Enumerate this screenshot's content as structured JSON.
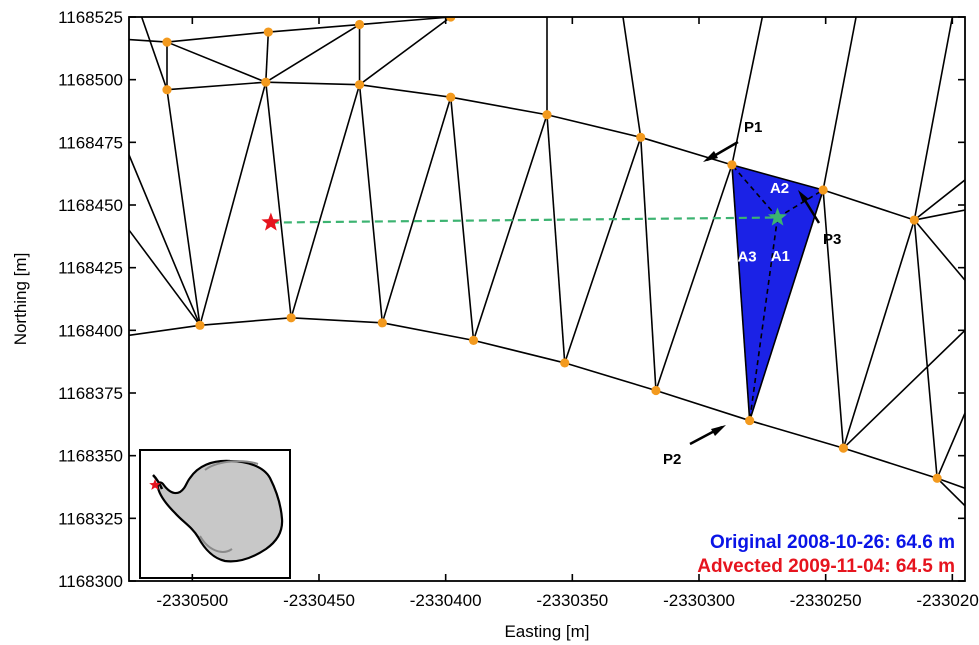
{
  "colors": {
    "node": "#f39a1e",
    "triangle_fill": "#1b22e6",
    "trajectory": "#3cb371",
    "original_text": "#0a14e6",
    "advected_text": "#e6141e",
    "start_marker": "#e6141e",
    "end_marker": "#3cb371",
    "antarctica_land": "#c8c8c8"
  },
  "chart_data": {
    "type": "scatter",
    "xlabel": "Easting [m]",
    "ylabel": "Northing [m]",
    "xlim": [
      -2330525,
      -2330195
    ],
    "ylim": [
      1168300,
      1168525
    ],
    "xticks": [
      -2330500,
      -2330450,
      -2330400,
      -2330350,
      -2330300,
      -2330250,
      -2330200
    ],
    "xtick_labels": [
      "-2330500",
      "-2330450",
      "-2330400",
      "-2330350",
      "-2330300",
      "-2330250",
      "-2330200"
    ],
    "yticks": [
      1168300,
      1168325,
      1168350,
      1168375,
      1168400,
      1168425,
      1168450,
      1168475,
      1168500,
      1168525
    ],
    "ytick_labels": [
      "1168300",
      "1168325",
      "1168350",
      "1168375",
      "1168400",
      "1168425",
      "1168450",
      "1168475",
      "1168500",
      "1168525"
    ],
    "mesh_nodes": [
      [
        -2330510,
        1168515
      ],
      [
        -2330470,
        1168519
      ],
      [
        -2330434,
        1168522
      ],
      [
        -2330398,
        1168525
      ],
      [
        -2330510,
        1168496
      ],
      [
        -2330471,
        1168499
      ],
      [
        -2330434,
        1168498
      ],
      [
        -2330398,
        1168493
      ],
      [
        -2330360,
        1168486
      ],
      [
        -2330323,
        1168477
      ],
      [
        -2330287,
        1168466
      ],
      [
        -2330251,
        1168456
      ],
      [
        -2330215,
        1168444
      ],
      [
        -2330497,
        1168402
      ],
      [
        -2330461,
        1168405
      ],
      [
        -2330425,
        1168403
      ],
      [
        -2330389,
        1168396
      ],
      [
        -2330353,
        1168387
      ],
      [
        -2330317,
        1168376
      ],
      [
        -2330280,
        1168364
      ],
      [
        -2330243,
        1168353
      ],
      [
        -2330206,
        1168341
      ]
    ],
    "mesh_triangles": [
      [
        0,
        1,
        5
      ],
      [
        1,
        2,
        5
      ],
      [
        2,
        6,
        5
      ],
      [
        2,
        3,
        6
      ],
      [
        0,
        4,
        5
      ],
      [
        4,
        5,
        13
      ],
      [
        5,
        13,
        14
      ],
      [
        5,
        6,
        14
      ],
      [
        6,
        14,
        15
      ],
      [
        6,
        7,
        15
      ],
      [
        7,
        15,
        16
      ],
      [
        7,
        8,
        16
      ],
      [
        8,
        16,
        17
      ],
      [
        8,
        9,
        17
      ],
      [
        9,
        17,
        18
      ],
      [
        9,
        10,
        18
      ],
      [
        10,
        18,
        19
      ],
      [
        10,
        11,
        19
      ],
      [
        11,
        19,
        20
      ],
      [
        11,
        12,
        20
      ],
      [
        12,
        20,
        21
      ]
    ],
    "highlighted_triangle": [
      10,
      19,
      11
    ],
    "vertex_labels": [
      "P1",
      "P2",
      "P3"
    ],
    "area_labels": [
      "A1",
      "A2",
      "A3"
    ],
    "start_point": [
      -2330469,
      1168443
    ],
    "end_point": [
      -2330269,
      1168445
    ],
    "annotations": [
      {
        "text": "Original 2008-10-26: 64.6 m",
        "color": "#0a14e6"
      },
      {
        "text": "Advected 2009-11-04: 64.5 m",
        "color": "#e6141e"
      }
    ]
  }
}
